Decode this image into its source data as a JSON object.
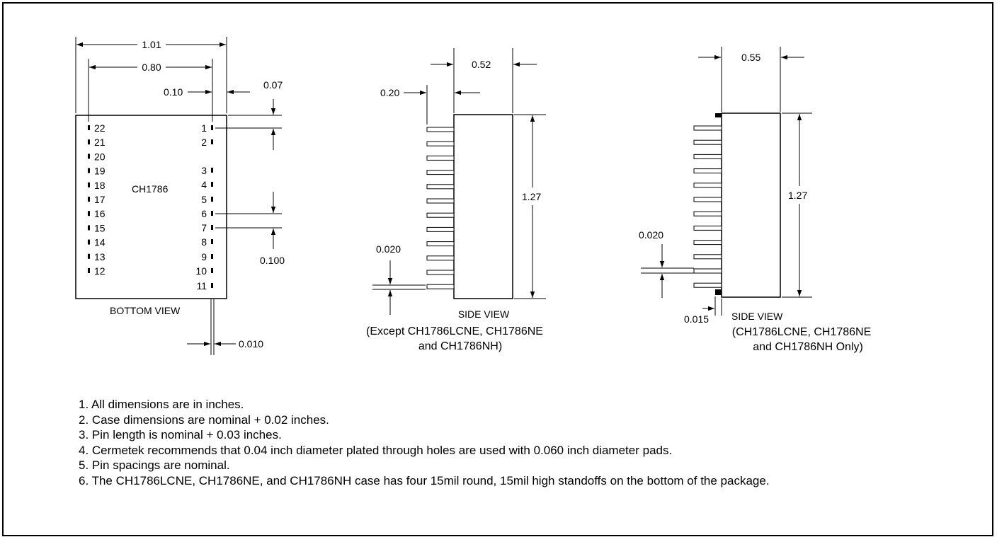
{
  "bottom_view": {
    "label": "BOTTOM VIEW",
    "part_label": "CH1786",
    "dims": {
      "overall_width": "1.01",
      "pin_row_span": "0.80",
      "pin_inset": "0.10",
      "top_to_pin1": "0.07",
      "pin_pitch": "0.100",
      "pin_width": "0.010"
    },
    "left_pins": [
      "22",
      "21",
      "20",
      "19",
      "18",
      "17",
      "16",
      "15",
      "14",
      "13",
      "12"
    ],
    "right_pins": [
      "1",
      "2",
      "3",
      "4",
      "5",
      "6",
      "7",
      "8",
      "9",
      "10",
      "11"
    ]
  },
  "side_view_standard": {
    "label": "SIDE VIEW",
    "caption_line1": "(Except CH1786LCNE, CH1786NE",
    "caption_line2": "and CH1786NH)",
    "dims": {
      "width": "0.52",
      "pin_length": "0.20",
      "height": "1.27",
      "pin_thickness": "0.020"
    }
  },
  "side_view_standoff": {
    "label": "SIDE VIEW",
    "caption_line1": "(CH1786LCNE, CH1786NE",
    "caption_line2": "and CH1786NH Only)",
    "dims": {
      "width": "0.55",
      "height": "1.27",
      "pin_thickness": "0.020",
      "standoff": "0.015"
    }
  },
  "notes": [
    "1. All dimensions are in inches.",
    "2. Case dimensions are nominal + 0.02 inches.",
    "3. Pin length is nominal + 0.03 inches.",
    "4. Cermetek recommends that 0.04 inch diameter plated through holes are used with 0.060 inch diameter pads.",
    "5. Pin spacings are nominal.",
    "6. The CH1786LCNE, CH1786NE, and CH1786NH case has four 15mil round, 15mil high standoffs on the bottom of the package."
  ]
}
